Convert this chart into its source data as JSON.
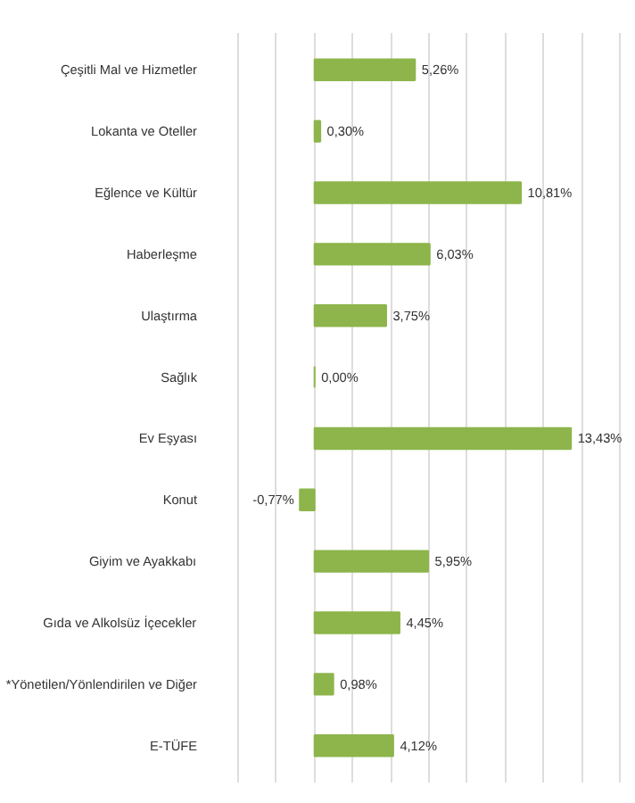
{
  "chart_data": {
    "type": "bar",
    "orientation": "horizontal",
    "categories": [
      "Çeşitli Mal ve Hizmetler",
      "Lokanta ve Oteller",
      "Eğlence ve Kültür",
      "Haberleşme",
      "Ulaştırma",
      "Sağlık",
      "Ev Eşyası",
      "Konut",
      "Giyim ve Ayakkabı",
      "Gıda ve Alkolsüz İçecekler",
      "*Yönetilen/Yönlendirilen ve Diğer",
      "E-TÜFE"
    ],
    "values": [
      5.26,
      0.3,
      10.81,
      6.03,
      3.75,
      0.0,
      13.43,
      -0.77,
      5.95,
      4.45,
      0.98,
      4.12
    ],
    "value_labels": [
      "5,26%",
      "0,30%",
      "10,81%",
      "6,03%",
      "3,75%",
      "0,00%",
      "13,43%",
      "-0,77%",
      "5,95%",
      "4,45%",
      "0,98%",
      "4,12%"
    ],
    "color": "#8db54b",
    "grid": "x",
    "tick_labels": "y"
  }
}
